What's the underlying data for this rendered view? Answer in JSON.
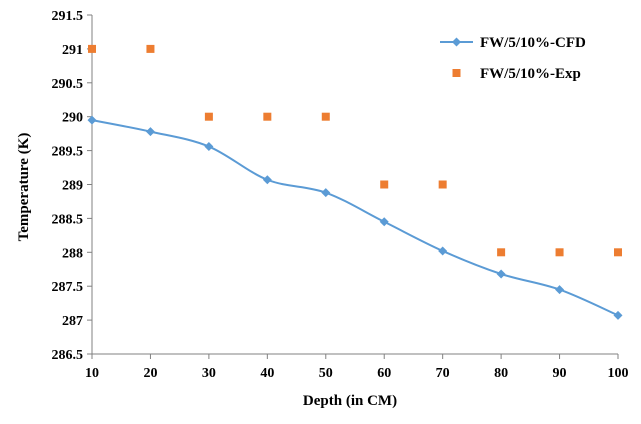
{
  "chart_data": {
    "type": "line",
    "title": "",
    "xlabel": "Depth (in CM)",
    "ylabel": "Temperature (K)",
    "xlim": [
      10,
      100
    ],
    "ylim": [
      286.5,
      291.5
    ],
    "x_ticks": [
      "10",
      "20",
      "30",
      "40",
      "50",
      "60",
      "70",
      "80",
      "90",
      "100"
    ],
    "y_ticks": [
      "286.5",
      "287",
      "287.5",
      "288",
      "288.5",
      "289",
      "289.5",
      "290",
      "290.5",
      "291",
      "291.5"
    ],
    "grid": false,
    "legend_position": "top-right",
    "x": [
      10,
      20,
      30,
      40,
      50,
      60,
      70,
      80,
      90,
      100
    ],
    "series": [
      {
        "name": "FW/5/10%-CFD",
        "style": "line-diamond",
        "color": "#5B9BD5",
        "values": [
          289.95,
          289.78,
          289.56,
          289.07,
          288.88,
          288.45,
          288.02,
          287.68,
          287.45,
          287.07
        ]
      },
      {
        "name": "FW/5/10%-Exp",
        "style": "square-markers",
        "color": "#ED7D31",
        "values": [
          291,
          291,
          290,
          290,
          290,
          289,
          289,
          288,
          288,
          288
        ]
      }
    ]
  }
}
